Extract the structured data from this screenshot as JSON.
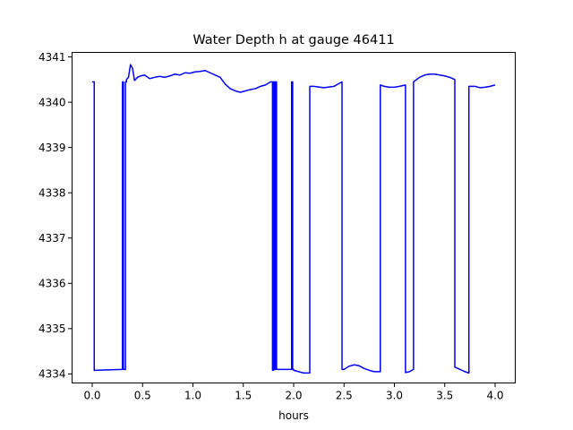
{
  "chart_data": {
    "type": "line",
    "title": "Water Depth h at gauge 46411",
    "xlabel": "hours",
    "ylabel": "",
    "xlim": [
      -0.2,
      4.2
    ],
    "ylim": [
      4333.8,
      4341.1
    ],
    "x_ticks": [
      0.0,
      0.5,
      1.0,
      1.5,
      2.0,
      2.5,
      3.0,
      3.5,
      4.0
    ],
    "x_tick_labels": [
      "0.0",
      "0.5",
      "1.0",
      "1.5",
      "2.0",
      "2.5",
      "3.0",
      "3.5",
      "4.0"
    ],
    "y_ticks": [
      4334,
      4335,
      4336,
      4337,
      4338,
      4339,
      4340,
      4341
    ],
    "y_tick_labels": [
      "4334",
      "4335",
      "4336",
      "4337",
      "4338",
      "4339",
      "4340",
      "4341"
    ],
    "grid": false,
    "legend": "none",
    "series": [
      {
        "color": "#0000ff",
        "x": [
          0.0,
          0.02,
          0.02,
          0.3,
          0.3,
          0.31,
          0.31,
          0.33,
          0.33,
          0.34,
          0.34,
          0.36,
          0.38,
          0.4,
          0.42,
          0.45,
          0.48,
          0.52,
          0.57,
          0.62,
          0.67,
          0.72,
          0.77,
          0.82,
          0.87,
          0.92,
          0.97,
          1.02,
          1.07,
          1.12,
          1.17,
          1.22,
          1.27,
          1.32,
          1.37,
          1.42,
          1.47,
          1.52,
          1.57,
          1.62,
          1.67,
          1.72,
          1.77,
          1.79,
          1.79,
          1.8,
          1.8,
          1.81,
          1.81,
          1.82,
          1.82,
          1.83,
          1.83,
          1.88,
          1.93,
          1.98,
          1.98,
          1.99,
          1.99,
          2.0,
          2.0,
          2.05,
          2.1,
          2.16,
          2.16,
          2.2,
          2.3,
          2.4,
          2.44,
          2.48,
          2.48,
          2.5,
          2.55,
          2.6,
          2.65,
          2.7,
          2.75,
          2.8,
          2.86,
          2.86,
          2.9,
          2.95,
          3.0,
          3.05,
          3.11,
          3.11,
          3.15,
          3.19,
          3.19,
          3.25,
          3.3,
          3.35,
          3.4,
          3.45,
          3.5,
          3.55,
          3.6,
          3.6,
          3.65,
          3.7,
          3.74,
          3.74,
          3.8,
          3.85,
          3.9,
          3.95,
          4.0
        ],
        "y": [
          4340.45,
          4340.45,
          4334.08,
          4334.1,
          4340.45,
          4340.45,
          4334.1,
          4334.1,
          4340.45,
          4340.45,
          4340.5,
          4340.55,
          4340.83,
          4340.75,
          4340.48,
          4340.55,
          4340.58,
          4340.6,
          4340.52,
          4340.55,
          4340.57,
          4340.55,
          4340.58,
          4340.62,
          4340.6,
          4340.65,
          4340.64,
          4340.67,
          4340.68,
          4340.7,
          4340.65,
          4340.6,
          4340.55,
          4340.4,
          4340.3,
          4340.25,
          4340.22,
          4340.25,
          4340.28,
          4340.3,
          4340.35,
          4340.38,
          4340.45,
          4340.45,
          4334.08,
          4334.08,
          4340.45,
          4340.45,
          4334.1,
          4334.1,
          4340.45,
          4340.45,
          4334.1,
          4334.1,
          4334.1,
          4334.1,
          4340.45,
          4340.45,
          4334.1,
          4334.1,
          4334.08,
          4334.05,
          4334.02,
          4334.02,
          4340.35,
          4340.35,
          4340.32,
          4340.35,
          4340.4,
          4340.45,
          4334.1,
          4334.1,
          4334.17,
          4334.2,
          4334.18,
          4334.12,
          4334.08,
          4334.05,
          4334.05,
          4340.38,
          4340.35,
          4340.33,
          4340.33,
          4340.35,
          4340.38,
          4334.03,
          4334.05,
          4334.1,
          4340.45,
          4340.55,
          4340.6,
          4340.62,
          4340.62,
          4340.6,
          4340.58,
          4340.55,
          4340.5,
          4334.15,
          4334.1,
          4334.05,
          4334.02,
          4340.35,
          4340.35,
          4340.32,
          4340.33,
          4340.35,
          4340.38
        ]
      }
    ]
  }
}
